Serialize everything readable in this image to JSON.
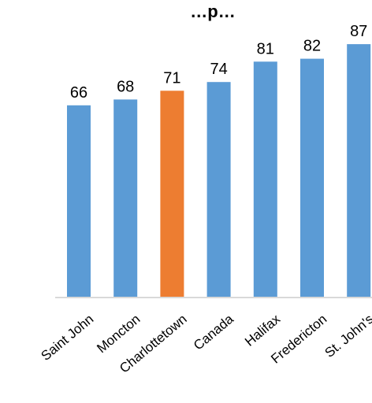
{
  "chart_data": {
    "type": "bar",
    "title": "…p…",
    "xlabel": "",
    "ylabel": "",
    "ylim": [
      0,
      89
    ],
    "grid": false,
    "legend": "none",
    "categories": [
      "Saint John",
      "Moncton",
      "Charlottetown",
      "Canada",
      "Halifax",
      "Fredericton",
      "St. John's"
    ],
    "values": [
      66,
      68,
      71,
      74,
      81,
      82,
      87
    ],
    "highlight_category": "Charlottetown",
    "colors": {
      "bar": "#5B9BD5",
      "highlight": "#ED7D31",
      "axis": "#D9D9D9",
      "text": "#000000"
    }
  }
}
